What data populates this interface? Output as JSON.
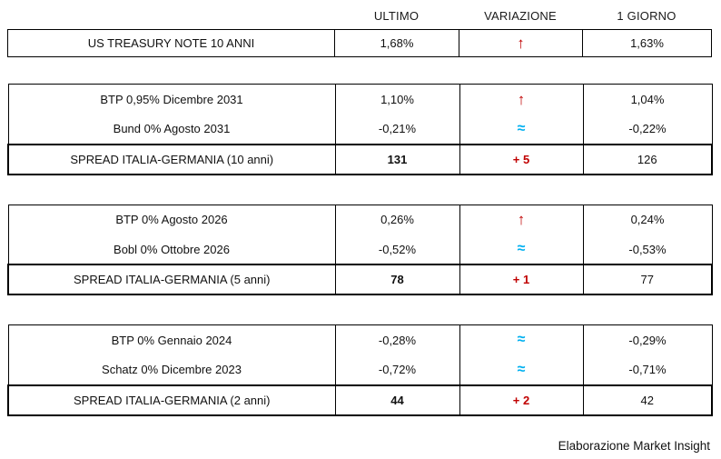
{
  "header": {
    "col_ultimo": "ULTIMO",
    "col_variazione": "VARIAZIONE",
    "col_giorno": "1 GIORNO"
  },
  "colors": {
    "up": "#C00000",
    "flat": "#00B0F0",
    "delta": "#C00000"
  },
  "tables": [
    {
      "name": "US Treasury",
      "rows": [
        {
          "label": "US TREASURY NOTE 10 ANNI",
          "ultimo": "1,68%",
          "variazione": "↑",
          "type": "up",
          "giorno": "1,63%"
        }
      ]
    },
    {
      "name": "10 anni",
      "rows": [
        {
          "label": "BTP 0,95% Dicembre 2031",
          "ultimo": "1,10%",
          "variazione": "↑",
          "type": "up",
          "giorno": "1,04%"
        },
        {
          "label": "Bund 0% Agosto 2031",
          "ultimo": "-0,21%",
          "variazione": "≈",
          "type": "flat",
          "giorno": "-0,22%"
        },
        {
          "label": "SPREAD ITALIA-GERMANIA (10 anni)",
          "ultimo": "131",
          "variazione": "+ 5",
          "type": "delta",
          "giorno": "126",
          "spread": true
        }
      ]
    },
    {
      "name": "5 anni",
      "rows": [
        {
          "label": "BTP 0% Agosto 2026",
          "ultimo": "0,26%",
          "variazione": "↑",
          "type": "up",
          "giorno": "0,24%"
        },
        {
          "label": "Bobl 0% Ottobre 2026",
          "ultimo": "-0,52%",
          "variazione": "≈",
          "type": "flat",
          "giorno": "-0,53%"
        },
        {
          "label": "SPREAD ITALIA-GERMANIA (5 anni)",
          "ultimo": "78",
          "variazione": "+ 1",
          "type": "delta",
          "giorno": "77",
          "spread": true
        }
      ]
    },
    {
      "name": "2 anni",
      "rows": [
        {
          "label": "BTP 0% Gennaio 2024",
          "ultimo": "-0,28%",
          "variazione": "≈",
          "type": "flat",
          "giorno": "-0,29%"
        },
        {
          "label": "Schatz 0% Dicembre 2023",
          "ultimo": "-0,72%",
          "variazione": "≈",
          "type": "flat",
          "giorno": "-0,71%"
        },
        {
          "label": "SPREAD ITALIA-GERMANIA (2 anni)",
          "ultimo": "44",
          "variazione": "+ 2",
          "type": "delta",
          "giorno": "42",
          "spread": true
        }
      ]
    }
  ],
  "footer": "Elaborazione Market Insight"
}
